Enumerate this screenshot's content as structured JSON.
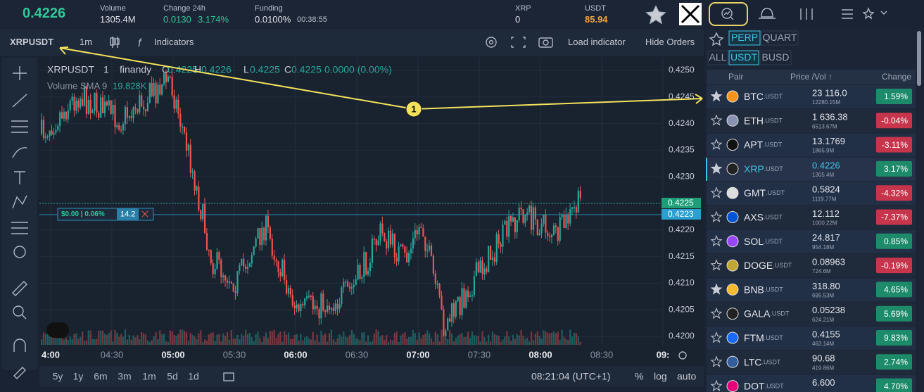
{
  "header": {
    "price": "0.4226",
    "volume_label": "Volume",
    "volume": "1305.4M",
    "change_label": "Change 24h",
    "change": "0.0130",
    "change_pct": "3.174%",
    "funding_label": "Funding",
    "funding": "0.0100%",
    "countdown": "00:38:55",
    "xrp_label": "XRP",
    "xrp_value": "0",
    "usdt_label": "USDT",
    "usdt_value": "85.94"
  },
  "toolbar": {
    "symbol": "XRPUSDT",
    "interval": "1m",
    "indicators": "Indicators",
    "load_indicator": "Load indicator",
    "hide_orders": "Hide Orders"
  },
  "legend": {
    "symbol": "XRPUSDT",
    "interval": "1",
    "source": "finandy",
    "o_label": "O",
    "o": "0.4225",
    "h_label": "H",
    "h": "0.4226",
    "l_label": "L",
    "l": "0.4225",
    "c_label": "C",
    "c": "0.4225",
    "delta": "0.0000 (0.00%)",
    "volume_label": "Volume SMA 9",
    "volume": "19.828K"
  },
  "price_axis": [
    "0.4250",
    "0.4245",
    "0.4240",
    "0.4235",
    "0.4230",
    "0.4225",
    "0.4220",
    "0.4215",
    "0.4210",
    "0.4205",
    "0.4200"
  ],
  "price_markers": {
    "last": "0.4225",
    "order": "0.4223"
  },
  "order_line": {
    "text": "$0.00 | 0.06%",
    "qty": "14.2"
  },
  "time_axis": [
    {
      "label": "4:00",
      "major": true
    },
    {
      "label": "04:30",
      "major": false
    },
    {
      "label": "05:00",
      "major": true
    },
    {
      "label": "05:30",
      "major": false
    },
    {
      "label": "06:00",
      "major": true
    },
    {
      "label": "06:30",
      "major": false
    },
    {
      "label": "07:00",
      "major": true
    },
    {
      "label": "07:30",
      "major": false
    },
    {
      "label": "08:00",
      "major": true
    },
    {
      "label": "08:30",
      "major": false
    },
    {
      "label": "09:",
      "major": true
    }
  ],
  "bottom": {
    "ranges": [
      "5y",
      "1y",
      "6m",
      "3m",
      "1m",
      "5d",
      "1d"
    ],
    "clock": "08:21:04 (UTC+1)",
    "percent": "%",
    "log": "log",
    "auto": "auto"
  },
  "annotation": "1",
  "market": {
    "tabs1": [
      "PERP",
      "QUART"
    ],
    "tabs2": [
      "ALL",
      "USDT",
      "BUSD"
    ],
    "col_pair": "Pair",
    "col_price": "Price /Vol ↑",
    "col_change": "Change",
    "rows": [
      {
        "symbol": "BTC",
        "quote": ".USDT",
        "price": "23 116.0",
        "vol": "12280.15M",
        "change": "1.59%",
        "starred": true,
        "active": false,
        "color": "#f7931a"
      },
      {
        "symbol": "ETH",
        "quote": ".USDT",
        "price": "1 636.38",
        "vol": "6513.67M",
        "change": "-0.04%",
        "starred": false,
        "active": false,
        "color": "#8a92b2"
      },
      {
        "symbol": "APT",
        "quote": ".USDT",
        "price": "13.1769",
        "vol": "1865.9M",
        "change": "-3.11%",
        "starred": false,
        "active": false,
        "color": "#111111"
      },
      {
        "symbol": "XRP",
        "quote": ".USDT",
        "price": "0.4226",
        "vol": "1305.4M",
        "change": "3.17%",
        "starred": true,
        "active": true,
        "color": "#222222"
      },
      {
        "symbol": "GMT",
        "quote": ".USDT",
        "price": "0.5824",
        "vol": "1119.77M",
        "change": "-4.32%",
        "starred": false,
        "active": false,
        "color": "#dddddd"
      },
      {
        "symbol": "AXS",
        "quote": ".USDT",
        "price": "12.112",
        "vol": "1000.22M",
        "change": "-7.37%",
        "starred": false,
        "active": false,
        "color": "#0055d5"
      },
      {
        "symbol": "SOL",
        "quote": ".USDT",
        "price": "24.817",
        "vol": "954.18M",
        "change": "0.85%",
        "starred": false,
        "active": false,
        "color": "#9945ff"
      },
      {
        "symbol": "DOGE",
        "quote": ".USDT",
        "price": "0.08963",
        "vol": "724.6M",
        "change": "-0.19%",
        "starred": false,
        "active": false,
        "color": "#c2a633"
      },
      {
        "symbol": "BNB",
        "quote": ".USDT",
        "price": "318.80",
        "vol": "695.53M",
        "change": "4.65%",
        "starred": true,
        "active": false,
        "color": "#f3ba2f"
      },
      {
        "symbol": "GALA",
        "quote": ".USDT",
        "price": "0.05238",
        "vol": "624.21M",
        "change": "5.69%",
        "starred": false,
        "active": false,
        "color": "#222222"
      },
      {
        "symbol": "FTM",
        "quote": ".USDT",
        "price": "0.4155",
        "vol": "463.14M",
        "change": "9.83%",
        "starred": false,
        "active": false,
        "color": "#1969ff"
      },
      {
        "symbol": "LTC",
        "quote": ".USDT",
        "price": "90.68",
        "vol": "419.86M",
        "change": "2.74%",
        "starred": false,
        "active": false,
        "color": "#345d9d"
      },
      {
        "symbol": "DOT",
        "quote": ".USDT",
        "price": "6.600",
        "change": "4.70%",
        "starred": false,
        "active": false,
        "color": "#e6007a"
      }
    ]
  }
}
